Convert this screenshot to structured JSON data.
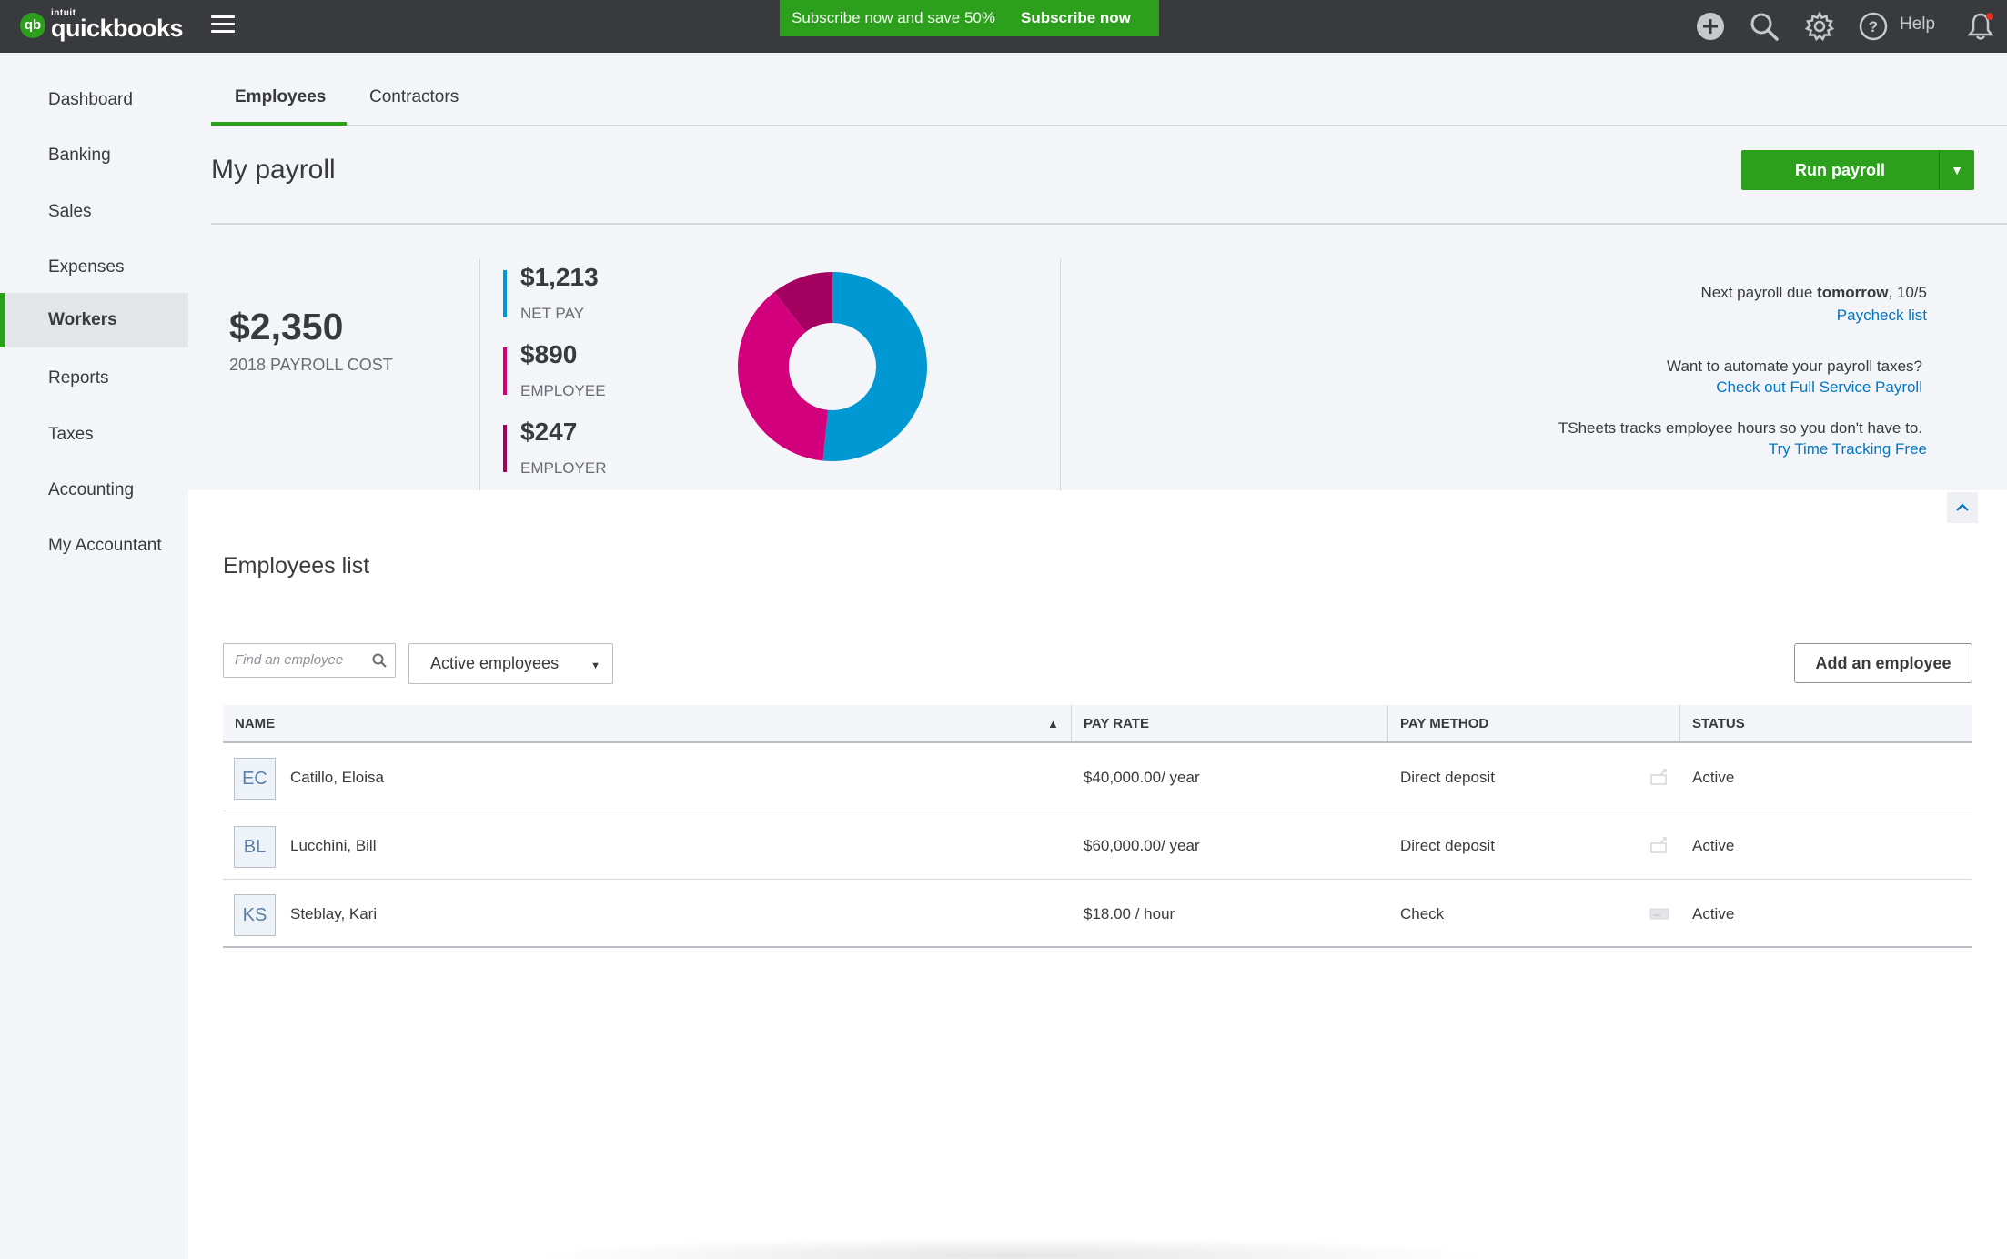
{
  "app": {
    "logo_mark": "qb",
    "logo_brand_small": "intuit",
    "logo_brand": "quickbooks",
    "menu_icon": "hamburger-icon"
  },
  "promo": {
    "text": "Subscribe now and save 50%",
    "cta": "Subscribe now",
    "color": "#2ca01c"
  },
  "topbar": {
    "icons": [
      "plus-circle-icon",
      "search-icon",
      "gear-icon",
      "help-icon",
      "bell-icon"
    ],
    "help_label": "Help"
  },
  "sidebar": {
    "items": [
      {
        "label": "Dashboard",
        "active": false
      },
      {
        "label": "Banking",
        "active": false
      },
      {
        "label": "Sales",
        "active": false
      },
      {
        "label": "Expenses",
        "active": false
      },
      {
        "label": "Workers",
        "active": true
      },
      {
        "label": "Reports",
        "active": false
      },
      {
        "label": "Taxes",
        "active": false
      },
      {
        "label": "Accounting",
        "active": false
      },
      {
        "label": "My Accountant",
        "active": false
      }
    ]
  },
  "tabs": [
    {
      "label": "Employees",
      "active": true
    },
    {
      "label": "Contractors",
      "active": false
    }
  ],
  "page": {
    "title": "My payroll",
    "run_payroll": "Run payroll",
    "run_payroll_caret": "▼"
  },
  "summary": {
    "total": "$2,350",
    "total_label": "2018 PAYROLL COST",
    "breakdown": [
      {
        "amount": "$1,213",
        "label": "NET PAY",
        "color": "#0098d3"
      },
      {
        "amount": "$890",
        "label": "EMPLOYEE",
        "color": "#d3007d"
      },
      {
        "amount": "$247",
        "label": "EMPLOYER",
        "color": "#a30060"
      }
    ]
  },
  "chart_data": {
    "type": "pie",
    "labels": [
      "NET PAY",
      "EMPLOYEE",
      "EMPLOYER"
    ],
    "values": [
      1213,
      890,
      247
    ],
    "colors": [
      "#0098d3",
      "#d3007d",
      "#a30060"
    ]
  },
  "info": {
    "next_payroll_prefix": "Next payroll due ",
    "next_payroll_bold": "tomorrow",
    "next_payroll_suffix": ", 10/5",
    "paycheck_link": "Paycheck list",
    "automate_text": "Want to automate your payroll taxes?",
    "automate_link": "Check out Full Service Payroll",
    "tsheets_text": "TSheets tracks employee hours so you don't have to.",
    "tsheets_link": "Try Time Tracking Free"
  },
  "employees_list": {
    "title": "Employees list",
    "search_placeholder": "Find an employee",
    "filter_value": "Active employees",
    "add_button": "Add an employee",
    "columns": [
      "NAME",
      "PAY RATE",
      "PAY METHOD",
      "STATUS"
    ],
    "sort_indicator": "▲",
    "rows": [
      {
        "initials": "EC",
        "name": "Catillo, Eloisa",
        "pay_rate": "$40,000.00/ year",
        "pay_method": "Direct deposit",
        "method_icon": "direct-deposit-icon",
        "status": "Active"
      },
      {
        "initials": "BL",
        "name": "Lucchini, Bill",
        "pay_rate": "$60,000.00/ year",
        "pay_method": "Direct deposit",
        "method_icon": "direct-deposit-icon",
        "status": "Active"
      },
      {
        "initials": "KS",
        "name": "Steblay, Kari",
        "pay_rate": "$18.00 / hour",
        "pay_method": "Check",
        "method_icon": "check-icon",
        "status": "Active"
      }
    ]
  }
}
